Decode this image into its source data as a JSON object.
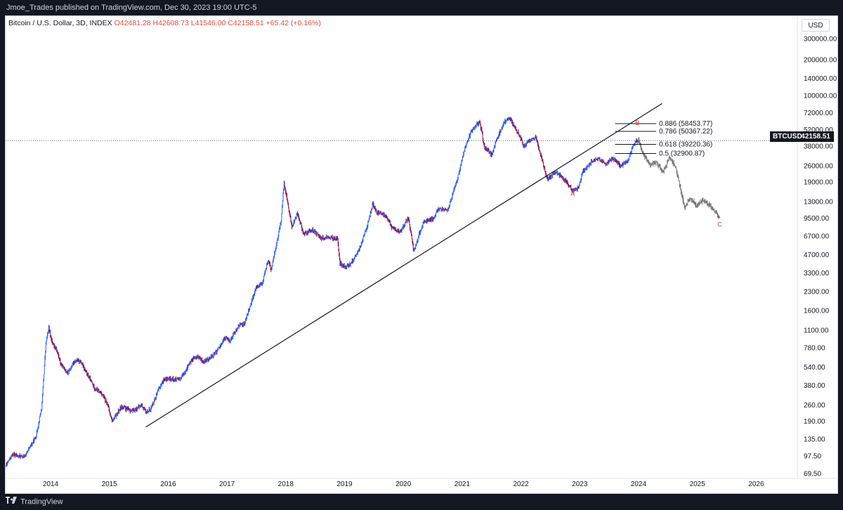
{
  "header": {
    "publisher": "Jmoe_Trades published on TradingView.com, Dec 30, 2023 19:00 UTC-5"
  },
  "legend": {
    "symbol": "Bitcoin / U.S. Dollar, 3D, INDEX",
    "open": "O42481.28",
    "high": "H42608.73",
    "low": "L41546.00",
    "close": "C42158.51",
    "change": "+65.42 (+0.16%)"
  },
  "currency": "USD",
  "price_badge": {
    "symbol": "BTCUSD",
    "value": "42158.51"
  },
  "footer": {
    "brand": "TradingView"
  },
  "colors": {
    "up": "#2962ff",
    "down": "#880e4f",
    "projection": "#8a8a8a",
    "annotation": "#e53935"
  },
  "chart_data": {
    "type": "candlestick",
    "symbol": "BTCUSD",
    "interval": "3D",
    "scale": "log",
    "ylim": [
      69.5,
      300000
    ],
    "xlim": [
      2013.1,
      2026.5
    ],
    "y_tick_labels": [
      "300000.00",
      "200000.00",
      "140000.00",
      "100000.00",
      "72000.00",
      "52000.00",
      "38000.00",
      "26000.00",
      "19000.00",
      "13000.00",
      "9500.00",
      "6700.00",
      "4700.00",
      "3300.00",
      "2300.00",
      "1600.00",
      "1100.00",
      "780.00",
      "540.00",
      "380.00",
      "260.00",
      "190.00",
      "135.00",
      "97.50",
      "69.50"
    ],
    "y_tick_values": [
      300000,
      200000,
      140000,
      100000,
      72000,
      52000,
      38000,
      26000,
      19000,
      13000,
      9500,
      6700,
      4700,
      3300,
      2300,
      1600,
      1100,
      780,
      540,
      380,
      260,
      190,
      135,
      97.5,
      69.5
    ],
    "x_ticks": [
      {
        "label": "2014",
        "x": 2014
      },
      {
        "label": "2015",
        "x": 2015
      },
      {
        "label": "2016",
        "x": 2016
      },
      {
        "label": "2017",
        "x": 2017
      },
      {
        "label": "2018",
        "x": 2018
      },
      {
        "label": "2019",
        "x": 2019
      },
      {
        "label": "2020",
        "x": 2020
      },
      {
        "label": "2021",
        "x": 2021
      },
      {
        "label": "2022",
        "x": 2022
      },
      {
        "label": "2023",
        "x": 2023
      },
      {
        "label": "2024",
        "x": 2024
      },
      {
        "label": "2025",
        "x": 2025
      },
      {
        "label": "2026",
        "x": 2026
      }
    ],
    "price_path": [
      [
        2013.1,
        130
      ],
      [
        2013.2,
        75
      ],
      [
        2013.35,
        100
      ],
      [
        2013.55,
        95
      ],
      [
        2013.75,
        140
      ],
      [
        2013.85,
        250
      ],
      [
        2013.92,
        850
      ],
      [
        2013.97,
        1150
      ],
      [
        2014.02,
        880
      ],
      [
        2014.1,
        760
      ],
      [
        2014.18,
        560
      ],
      [
        2014.3,
        480
      ],
      [
        2014.4,
        600
      ],
      [
        2014.5,
        610
      ],
      [
        2014.62,
        470
      ],
      [
        2014.75,
        360
      ],
      [
        2014.88,
        320
      ],
      [
        2014.98,
        250
      ],
      [
        2015.05,
        190
      ],
      [
        2015.2,
        250
      ],
      [
        2015.4,
        230
      ],
      [
        2015.55,
        260
      ],
      [
        2015.62,
        225
      ],
      [
        2015.7,
        240
      ],
      [
        2015.85,
        360
      ],
      [
        2015.92,
        420
      ],
      [
        2016.0,
        430
      ],
      [
        2016.2,
        420
      ],
      [
        2016.4,
        620
      ],
      [
        2016.5,
        660
      ],
      [
        2016.6,
        590
      ],
      [
        2016.8,
        700
      ],
      [
        2016.98,
        960
      ],
      [
        2017.05,
        900
      ],
      [
        2017.2,
        1200
      ],
      [
        2017.3,
        1250
      ],
      [
        2017.4,
        1800
      ],
      [
        2017.5,
        2500
      ],
      [
        2017.6,
        2700
      ],
      [
        2017.7,
        4200
      ],
      [
        2017.75,
        3500
      ],
      [
        2017.85,
        6000
      ],
      [
        2017.92,
        9000
      ],
      [
        2017.97,
        18500
      ],
      [
        2018.02,
        14000
      ],
      [
        2018.1,
        8000
      ],
      [
        2018.2,
        10500
      ],
      [
        2018.3,
        7000
      ],
      [
        2018.45,
        7500
      ],
      [
        2018.6,
        6500
      ],
      [
        2018.75,
        6500
      ],
      [
        2018.88,
        6300
      ],
      [
        2018.92,
        4000
      ],
      [
        2019.0,
        3700
      ],
      [
        2019.1,
        3900
      ],
      [
        2019.25,
        5200
      ],
      [
        2019.38,
        8000
      ],
      [
        2019.48,
        12500
      ],
      [
        2019.55,
        10500
      ],
      [
        2019.7,
        10000
      ],
      [
        2019.8,
        8000
      ],
      [
        2019.95,
        7200
      ],
      [
        2020.08,
        9500
      ],
      [
        2020.18,
        5000
      ],
      [
        2020.25,
        6500
      ],
      [
        2020.35,
        9000
      ],
      [
        2020.5,
        9300
      ],
      [
        2020.6,
        11500
      ],
      [
        2020.75,
        11000
      ],
      [
        2020.85,
        15500
      ],
      [
        2020.95,
        23000
      ],
      [
        2021.02,
        33000
      ],
      [
        2021.15,
        50000
      ],
      [
        2021.25,
        58000
      ],
      [
        2021.3,
        60000
      ],
      [
        2021.38,
        37000
      ],
      [
        2021.5,
        32000
      ],
      [
        2021.6,
        45000
      ],
      [
        2021.72,
        60000
      ],
      [
        2021.8,
        66000
      ],
      [
        2021.87,
        57000
      ],
      [
        2021.97,
        47000
      ],
      [
        2022.05,
        38000
      ],
      [
        2022.15,
        42000
      ],
      [
        2022.25,
        45000
      ],
      [
        2022.35,
        30000
      ],
      [
        2022.45,
        20000
      ],
      [
        2022.6,
        23000
      ],
      [
        2022.75,
        19500
      ],
      [
        2022.88,
        16000
      ],
      [
        2022.98,
        17000
      ],
      [
        2023.05,
        23000
      ],
      [
        2023.2,
        28000
      ],
      [
        2023.3,
        30000
      ],
      [
        2023.45,
        26500
      ],
      [
        2023.55,
        30500
      ],
      [
        2023.7,
        26000
      ],
      [
        2023.82,
        28500
      ],
      [
        2023.88,
        35000
      ],
      [
        2023.95,
        42000
      ],
      [
        2024.0,
        42158.51
      ]
    ],
    "projection_path": [
      [
        2024.0,
        42158.51
      ],
      [
        2024.05,
        35000
      ],
      [
        2024.12,
        30000
      ],
      [
        2024.2,
        26000
      ],
      [
        2024.3,
        28000
      ],
      [
        2024.42,
        23000
      ],
      [
        2024.52,
        30000
      ],
      [
        2024.62,
        26000
      ],
      [
        2024.7,
        18000
      ],
      [
        2024.78,
        11500
      ],
      [
        2024.88,
        14000
      ],
      [
        2024.98,
        12000
      ],
      [
        2025.1,
        13500
      ],
      [
        2025.22,
        12000
      ],
      [
        2025.32,
        10500
      ],
      [
        2025.38,
        9500
      ]
    ],
    "trendline": [
      [
        2015.62,
        170
      ],
      [
        2024.4,
        86000
      ]
    ],
    "fib_levels": [
      {
        "level": "0.886",
        "price": "58453.77",
        "label": "0.886 (58453.77)"
      },
      {
        "level": "0.786",
        "price": "50367.22",
        "label": "0.786 (50367.22)"
      },
      {
        "level": "0.618",
        "price": "39220.36",
        "label": "0.618 (39220.36)"
      },
      {
        "level": "0.5",
        "price": "32900.87",
        "label": "0.5 (32900.87)"
      }
    ],
    "fib_x_range": [
      2023.6,
      2024.3
    ],
    "wave_labels": [
      {
        "text": "A",
        "x": 2022.88,
        "price": 15300
      },
      {
        "text": "B",
        "x": 2023.98,
        "price": 60000
      },
      {
        "text": "C",
        "x": 2025.38,
        "price": 8500
      }
    ],
    "last_price": 42158.51
  }
}
